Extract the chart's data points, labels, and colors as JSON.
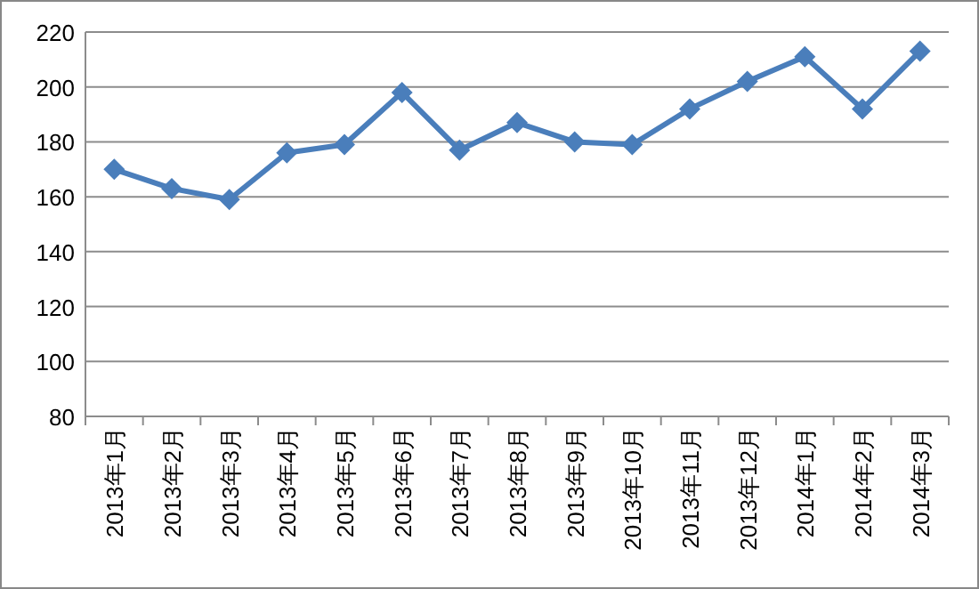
{
  "chart_data": {
    "type": "line",
    "categories": [
      "2013年1月",
      "2013年2月",
      "2013年3月",
      "2013年4月",
      "2013年5月",
      "2013年6月",
      "2013年7月",
      "2013年8月",
      "2013年9月",
      "2013年10月",
      "2013年11月",
      "2013年12月",
      "2014年1月",
      "2014年2月",
      "2014年3月"
    ],
    "series": [
      {
        "color": "#4a7ebb",
        "values": [
          170,
          163,
          159,
          176,
          179,
          198,
          177,
          187,
          180,
          179,
          192,
          202,
          211,
          192,
          213
        ]
      }
    ],
    "ylim": [
      80,
      220
    ],
    "yticks": [
      80,
      100,
      120,
      140,
      160,
      180,
      200,
      220
    ],
    "grid": "y",
    "marker": "diamond",
    "line_style": "solid"
  }
}
